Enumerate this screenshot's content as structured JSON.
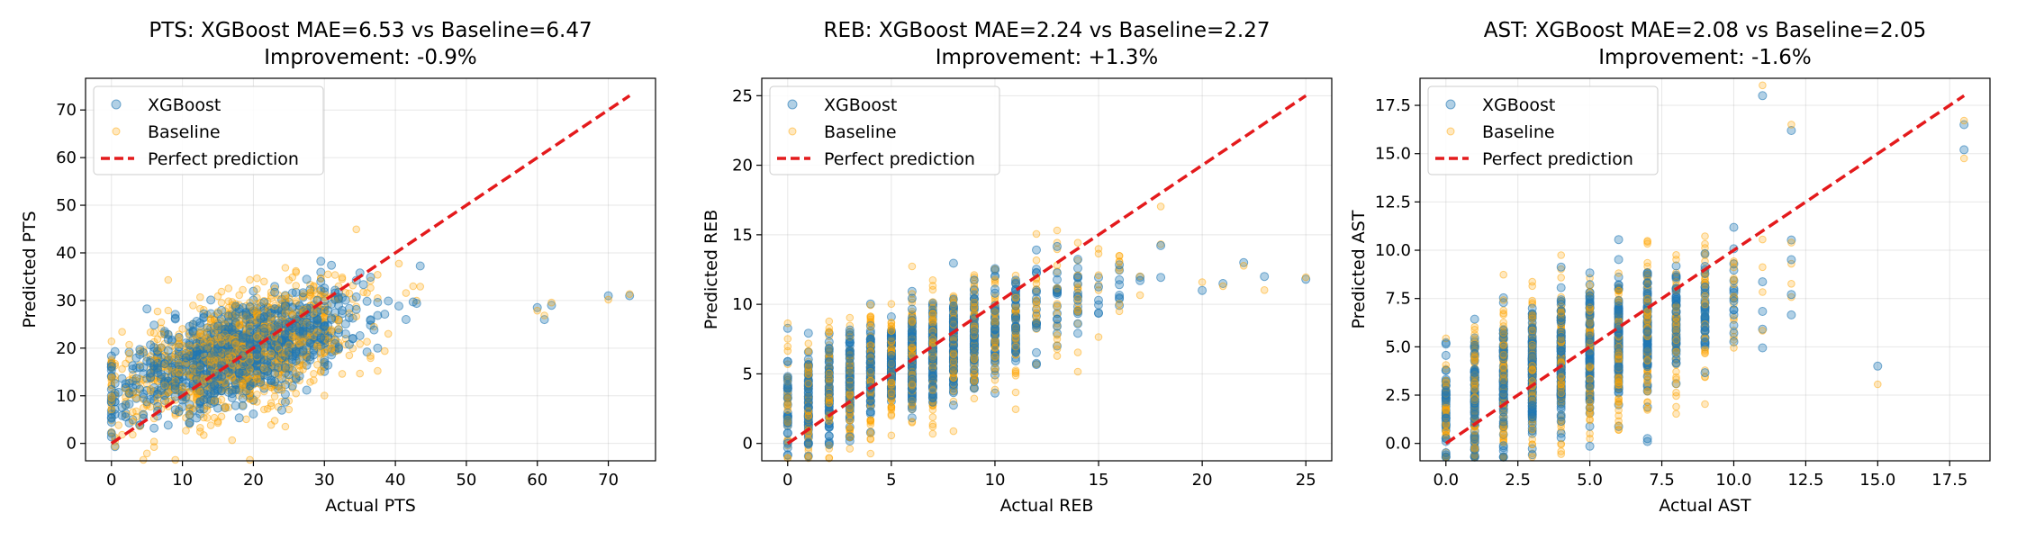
{
  "chart_data": [
    {
      "type": "scatter",
      "title": "PTS: XGBoost MAE=6.53 vs Baseline=6.47",
      "subtitle": "Improvement: -0.9%",
      "xlabel": "Actual PTS",
      "ylabel": "Predicted PTS",
      "xlim": [
        -3.65,
        76.65
      ],
      "ylim": [
        -3.65,
        76.65
      ],
      "xticks": [
        0,
        10,
        20,
        30,
        40,
        50,
        60,
        70
      ],
      "yticks": [
        0,
        10,
        20,
        30,
        40,
        50,
        60,
        70
      ],
      "tick_labels_x": [
        "0",
        "10",
        "20",
        "30",
        "40",
        "50",
        "60",
        "70"
      ],
      "tick_labels_y": [
        "0",
        "10",
        "20",
        "30",
        "40",
        "50",
        "60",
        "70"
      ],
      "grid": true,
      "legend": "top-left",
      "perfect_line": [
        0,
        73
      ],
      "actual_range": [
        0,
        52
      ],
      "outliers": [
        [
          60,
          28.5
        ],
        [
          61,
          26
        ],
        [
          62,
          29
        ],
        [
          70,
          31
        ],
        [
          73,
          31
        ]
      ],
      "series": [
        {
          "name": "XGBoost",
          "color": "#1f77b4",
          "alpha": 0.35,
          "marker": "circle"
        },
        {
          "name": "Baseline",
          "color": "#ffa500",
          "alpha": 0.25,
          "marker": "circle"
        },
        {
          "name": "Perfect prediction",
          "color": "#e41a1c",
          "style": "dashed"
        }
      ]
    },
    {
      "type": "scatter",
      "title": "REB: XGBoost MAE=2.24 vs Baseline=2.27",
      "subtitle": "Improvement: +1.3%",
      "xlabel": "Actual REB",
      "ylabel": "Predicted REB",
      "xlim": [
        -1.25,
        26.25
      ],
      "ylim": [
        -1.25,
        26.25
      ],
      "xticks": [
        0,
        5,
        10,
        15,
        20,
        25
      ],
      "yticks": [
        0,
        5,
        10,
        15,
        20,
        25
      ],
      "tick_labels_x": [
        "0",
        "5",
        "10",
        "15",
        "20",
        "25"
      ],
      "tick_labels_y": [
        "0",
        "5",
        "10",
        "15",
        "20",
        "25"
      ],
      "grid": true,
      "legend": "top-left",
      "perfect_line": [
        0,
        25
      ],
      "actual_range": [
        0,
        18
      ],
      "outliers": [
        [
          20,
          11
        ],
        [
          21,
          11.5
        ],
        [
          22,
          13
        ],
        [
          23,
          12
        ],
        [
          25,
          11.8
        ]
      ],
      "series": [
        {
          "name": "XGBoost",
          "color": "#1f77b4",
          "alpha": 0.35,
          "marker": "circle"
        },
        {
          "name": "Baseline",
          "color": "#ffa500",
          "alpha": 0.25,
          "marker": "circle"
        },
        {
          "name": "Perfect prediction",
          "color": "#e41a1c",
          "style": "dashed"
        }
      ]
    },
    {
      "type": "scatter",
      "title": "AST: XGBoost MAE=2.08 vs Baseline=2.05",
      "subtitle": "Improvement: -1.6%",
      "xlabel": "Actual AST",
      "ylabel": "Predicted AST",
      "xlim": [
        -0.9,
        18.9
      ],
      "ylim": [
        -0.9,
        18.9
      ],
      "xticks": [
        0,
        2.5,
        5,
        7.5,
        10,
        12.5,
        15,
        17.5
      ],
      "yticks": [
        0,
        2.5,
        5,
        7.5,
        10,
        12.5,
        15,
        17.5
      ],
      "tick_labels_x": [
        "0.0",
        "2.5",
        "5.0",
        "7.5",
        "10.0",
        "12.5",
        "15.0",
        "17.5"
      ],
      "tick_labels_y": [
        "0.0",
        "2.5",
        "5.0",
        "7.5",
        "10.0",
        "12.5",
        "15.0",
        "17.5"
      ],
      "grid": true,
      "legend": "top-left",
      "perfect_line": [
        0,
        18
      ],
      "actual_range": [
        0,
        17
      ],
      "outliers": [
        [
          11,
          18
        ],
        [
          12,
          16.2
        ],
        [
          18,
          16.5
        ],
        [
          18,
          15.2
        ],
        [
          15,
          4
        ]
      ],
      "series": [
        {
          "name": "XGBoost",
          "color": "#1f77b4",
          "alpha": 0.35,
          "marker": "circle"
        },
        {
          "name": "Baseline",
          "color": "#ffa500",
          "alpha": 0.25,
          "marker": "circle"
        },
        {
          "name": "Perfect prediction",
          "color": "#e41a1c",
          "style": "dashed"
        }
      ]
    }
  ]
}
